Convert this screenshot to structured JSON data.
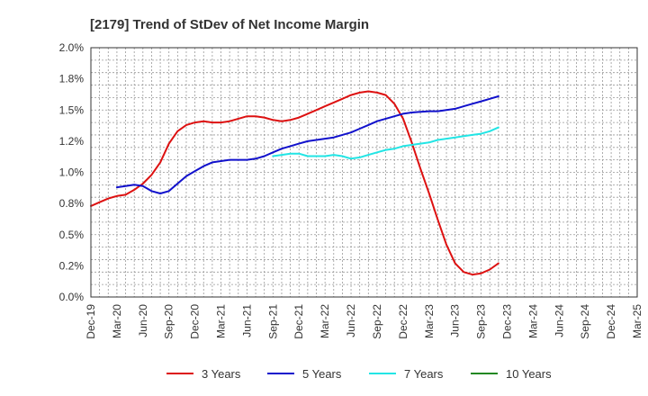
{
  "chart_data": {
    "type": "line",
    "title": "[2179]  Trend of StDev of Net Income Margin",
    "xlabel": "",
    "ylabel": "",
    "x_tick_labels": [
      "Dec-19",
      "Mar-20",
      "Jun-20",
      "Sep-20",
      "Dec-20",
      "Mar-21",
      "Jun-21",
      "Sep-21",
      "Dec-21",
      "Mar-22",
      "Jun-22",
      "Sep-22",
      "Dec-22",
      "Mar-23",
      "Jun-23",
      "Sep-23",
      "Dec-23",
      "Mar-24",
      "Jun-24",
      "Sep-24",
      "Dec-24",
      "Mar-25"
    ],
    "y_tick_labels": [
      "0.0%",
      "0.2%",
      "0.5%",
      "0.8%",
      "1.0%",
      "1.2%",
      "1.5%",
      "1.8%",
      "2.0%"
    ],
    "ylim": [
      0,
      2.0
    ],
    "grid": true,
    "legend_position": "bottom",
    "series": [
      {
        "name": "3 Years",
        "color": "#dd1111",
        "values": [
          [
            0,
            0.73
          ],
          [
            1,
            0.76
          ],
          [
            2,
            0.79
          ],
          [
            3,
            0.81
          ],
          [
            4,
            0.82
          ],
          [
            5,
            0.86
          ],
          [
            6,
            0.91
          ],
          [
            7,
            0.98
          ],
          [
            8,
            1.08
          ],
          [
            9,
            1.23
          ],
          [
            10,
            1.33
          ],
          [
            11,
            1.38
          ],
          [
            12,
            1.4
          ],
          [
            13,
            1.41
          ],
          [
            14,
            1.4
          ],
          [
            15,
            1.4
          ],
          [
            16,
            1.41
          ],
          [
            17,
            1.43
          ],
          [
            18,
            1.45
          ],
          [
            19,
            1.45
          ],
          [
            20,
            1.44
          ],
          [
            21,
            1.42
          ],
          [
            22,
            1.41
          ],
          [
            23,
            1.42
          ],
          [
            24,
            1.44
          ],
          [
            25,
            1.47
          ],
          [
            26,
            1.5
          ],
          [
            27,
            1.53
          ],
          [
            28,
            1.56
          ],
          [
            29,
            1.59
          ],
          [
            30,
            1.62
          ],
          [
            31,
            1.64
          ],
          [
            32,
            1.65
          ],
          [
            33,
            1.64
          ],
          [
            34,
            1.62
          ],
          [
            35,
            1.55
          ],
          [
            36,
            1.43
          ],
          [
            37,
            1.24
          ],
          [
            38,
            1.03
          ],
          [
            39,
            0.83
          ],
          [
            40,
            0.62
          ],
          [
            41,
            0.42
          ],
          [
            42,
            0.27
          ],
          [
            43,
            0.2
          ],
          [
            44,
            0.18
          ],
          [
            45,
            0.19
          ],
          [
            46,
            0.22
          ],
          [
            47,
            0.27
          ]
        ]
      },
      {
        "name": "5 Years",
        "color": "#1111cc",
        "values": [
          [
            3,
            0.88
          ],
          [
            4,
            0.89
          ],
          [
            5,
            0.9
          ],
          [
            6,
            0.89
          ],
          [
            7,
            0.85
          ],
          [
            8,
            0.83
          ],
          [
            9,
            0.85
          ],
          [
            10,
            0.91
          ],
          [
            11,
            0.97
          ],
          [
            12,
            1.01
          ],
          [
            13,
            1.05
          ],
          [
            14,
            1.08
          ],
          [
            15,
            1.09
          ],
          [
            16,
            1.1
          ],
          [
            17,
            1.1
          ],
          [
            18,
            1.1
          ],
          [
            19,
            1.11
          ],
          [
            20,
            1.13
          ],
          [
            21,
            1.16
          ],
          [
            22,
            1.19
          ],
          [
            23,
            1.21
          ],
          [
            24,
            1.23
          ],
          [
            25,
            1.25
          ],
          [
            26,
            1.26
          ],
          [
            27,
            1.27
          ],
          [
            28,
            1.28
          ],
          [
            29,
            1.3
          ],
          [
            30,
            1.32
          ],
          [
            31,
            1.35
          ],
          [
            32,
            1.38
          ],
          [
            33,
            1.41
          ],
          [
            34,
            1.43
          ],
          [
            35,
            1.45
          ],
          [
            36,
            1.47
          ],
          [
            37,
            1.48
          ],
          [
            38,
            1.485
          ],
          [
            39,
            1.49
          ],
          [
            40,
            1.49
          ],
          [
            41,
            1.5
          ],
          [
            42,
            1.51
          ],
          [
            43,
            1.53
          ],
          [
            44,
            1.55
          ],
          [
            45,
            1.57
          ],
          [
            46,
            1.59
          ],
          [
            47,
            1.61
          ]
        ]
      },
      {
        "name": "7 Years",
        "color": "#22e5e5",
        "values": [
          [
            21,
            1.13
          ],
          [
            22,
            1.14
          ],
          [
            23,
            1.15
          ],
          [
            24,
            1.15
          ],
          [
            25,
            1.13
          ],
          [
            26,
            1.13
          ],
          [
            27,
            1.13
          ],
          [
            28,
            1.14
          ],
          [
            29,
            1.13
          ],
          [
            30,
            1.11
          ],
          [
            31,
            1.12
          ],
          [
            32,
            1.14
          ],
          [
            33,
            1.16
          ],
          [
            34,
            1.18
          ],
          [
            35,
            1.19
          ],
          [
            36,
            1.21
          ],
          [
            37,
            1.22
          ],
          [
            38,
            1.23
          ],
          [
            39,
            1.24
          ],
          [
            40,
            1.26
          ],
          [
            41,
            1.27
          ],
          [
            42,
            1.28
          ],
          [
            43,
            1.29
          ],
          [
            44,
            1.3
          ],
          [
            45,
            1.31
          ],
          [
            46,
            1.33
          ],
          [
            47,
            1.36
          ]
        ]
      },
      {
        "name": "10 Years",
        "color": "#228822",
        "values": []
      }
    ]
  }
}
